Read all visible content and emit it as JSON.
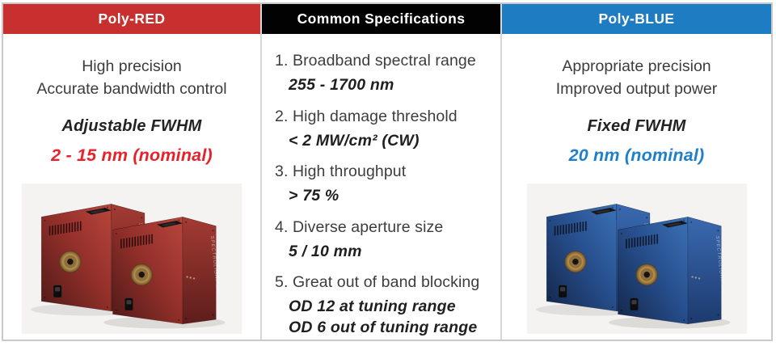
{
  "colors": {
    "poly_red_header": "#C7302E",
    "specs_header": "#020202",
    "poly_blue_header": "#1D7CC2",
    "accent_red": "#E8222A",
    "accent_blue": "#1E7FCB",
    "panel_border": "#C9C9C9"
  },
  "poly_red": {
    "header": "Poly-RED",
    "description_line1": "High precision",
    "description_line2": "Accurate bandwidth control",
    "fwhm_label": "Adjustable FWHM",
    "fwhm_value": "2 - 15 nm (nominal)",
    "device_side_label": "SPECTROLIGHT Inc."
  },
  "common_specs": {
    "header": "Common Specifications",
    "items": [
      {
        "title": "1. Broadband spectral range",
        "values": [
          "255 - 1700 nm"
        ]
      },
      {
        "title": "2. High damage threshold",
        "values": [
          "< 2 MW/cm² (CW)"
        ]
      },
      {
        "title": "3. High throughput",
        "values": [
          "> 75 %"
        ]
      },
      {
        "title": "4. Diverse aperture size",
        "values": [
          "5 / 10 mm"
        ]
      },
      {
        "title": "5. Great out of band blocking",
        "values": [
          "OD 12 at tuning range",
          "OD 6 out of tuning range"
        ]
      }
    ]
  },
  "poly_blue": {
    "header": "Poly-BLUE",
    "description_line1": "Appropriate precision",
    "description_line2": "Improved output power",
    "fwhm_label": "Fixed FWHM",
    "fwhm_value": "20 nm (nominal)",
    "device_side_label": "SPECTROLIGHT Inc."
  }
}
